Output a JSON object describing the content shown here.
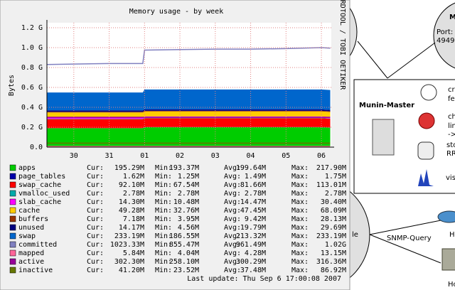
{
  "chart_data": {
    "type": "area",
    "title": "Memory usage - by week",
    "y_label": "Bytes",
    "side_text": "RRDTOOL / TOBI OETIKER",
    "footer": "Last update:  Thu Sep  6 17:00:08 2007",
    "ylim": [
      0,
      1.25
    ],
    "yticks": [
      {
        "value": 0,
        "label": "0.0"
      },
      {
        "value": 0.2,
        "label": "0.2 G"
      },
      {
        "value": 0.4,
        "label": "0.4 G"
      },
      {
        "value": 0.6,
        "label": "0.6 G"
      },
      {
        "value": 0.8,
        "label": "0.8 G"
      },
      {
        "value": 1.0,
        "label": "1.0 G"
      },
      {
        "value": 1.2,
        "label": "1.2 G"
      }
    ],
    "xlim": [
      -0.76,
      7.28
    ],
    "xticks": [
      {
        "value": 0,
        "label": "30"
      },
      {
        "value": 1,
        "label": "31"
      },
      {
        "value": 2,
        "label": "01"
      },
      {
        "value": 3,
        "label": "02"
      },
      {
        "value": 4,
        "label": "03"
      },
      {
        "value": 5,
        "label": "04"
      },
      {
        "value": 6,
        "label": "05"
      },
      {
        "value": 7,
        "label": "06"
      }
    ],
    "grid": true,
    "x": [
      -0.75,
      0,
      1,
      1.95,
      2,
      3,
      4,
      5,
      6,
      7,
      7.25
    ],
    "stat_labels": [
      "Cur:",
      "Min:",
      "Avg:",
      "Max:"
    ],
    "series": [
      {
        "name": "apps",
        "color": "#00cc00",
        "style": "area",
        "values": [
          0.19,
          0.19,
          0.19,
          0.19,
          0.2,
          0.2,
          0.2,
          0.2,
          0.2,
          0.2,
          0.195
        ],
        "stats": [
          "195.29M",
          "193.37M",
          "199.64M",
          "217.90M"
        ]
      },
      {
        "name": "page_tables",
        "color": "#0000aa",
        "style": "area",
        "values": [
          0.0015,
          0.0015,
          0.0015,
          0.0015,
          0.0015,
          0.0015,
          0.0015,
          0.0015,
          0.0015,
          0.0015,
          0.0015
        ],
        "stats": [
          "1.62M",
          "1.25M",
          "1.49M",
          "1.75M"
        ]
      },
      {
        "name": "swap_cache",
        "color": "#ff0000",
        "style": "area",
        "values": [
          0.09,
          0.09,
          0.09,
          0.09,
          0.09,
          0.09,
          0.09,
          0.09,
          0.09,
          0.09,
          0.09
        ],
        "stats": [
          "92.10M",
          "67.54M",
          "81.66M",
          "113.01M"
        ]
      },
      {
        "name": "vmalloc_used",
        "color": "#00aaaa",
        "style": "area",
        "values": [
          0.003,
          0.003,
          0.003,
          0.003,
          0.003,
          0.003,
          0.003,
          0.003,
          0.003,
          0.003,
          0.003
        ],
        "stats": [
          "2.78M",
          "2.78M",
          "2.78M",
          "2.78M"
        ]
      },
      {
        "name": "slab_cache",
        "color": "#ff00ff",
        "style": "area",
        "values": [
          0.014,
          0.014,
          0.014,
          0.014,
          0.014,
          0.014,
          0.014,
          0.014,
          0.014,
          0.014,
          0.014
        ],
        "stats": [
          "14.30M",
          "10.48M",
          "14.47M",
          "30.40M"
        ]
      },
      {
        "name": "cache",
        "color": "#ffcc00",
        "style": "area",
        "values": [
          0.05,
          0.05,
          0.05,
          0.05,
          0.05,
          0.05,
          0.05,
          0.05,
          0.05,
          0.05,
          0.05
        ],
        "stats": [
          "49.28M",
          "32.76M",
          "47.45M",
          "68.09M"
        ]
      },
      {
        "name": "buffers",
        "color": "#993300",
        "style": "area",
        "values": [
          0.007,
          0.007,
          0.007,
          0.007,
          0.007,
          0.007,
          0.007,
          0.007,
          0.007,
          0.007,
          0.007
        ],
        "stats": [
          "7.18M",
          "3.95M",
          "9.42M",
          "28.13M"
        ]
      },
      {
        "name": "unused",
        "color": "#000080",
        "style": "area",
        "values": [
          0.014,
          0.014,
          0.014,
          0.014,
          0.014,
          0.014,
          0.014,
          0.014,
          0.014,
          0.014,
          0.014
        ],
        "stats": [
          "14.17M",
          "4.56M",
          "19.79M",
          "29.69M"
        ]
      },
      {
        "name": "swap",
        "color": "#0066cc",
        "style": "area",
        "values": [
          0.18,
          0.18,
          0.18,
          0.18,
          0.2,
          0.2,
          0.2,
          0.2,
          0.2,
          0.2,
          0.2
        ],
        "stats": [
          "233.19M",
          "186.55M",
          "213.32M",
          "233.19M"
        ]
      },
      {
        "name": "committed",
        "color": "#8080c0",
        "style": "line",
        "values": [
          0.83,
          0.835,
          0.84,
          0.84,
          0.975,
          0.98,
          0.985,
          0.985,
          0.99,
          1.0,
          0.995
        ],
        "stats": [
          "1023.33M",
          "855.47M",
          "961.49M",
          "1.02G"
        ]
      },
      {
        "name": "mapped",
        "color": "#ff6699",
        "style": "line",
        "values": [
          0.006,
          0.006,
          0.006,
          0.006,
          0.006,
          0.006,
          0.006,
          0.006,
          0.006,
          0.006,
          0.006
        ],
        "stats": [
          "5.84M",
          "4.04M",
          "4.28M",
          "13.15M"
        ]
      },
      {
        "name": "active",
        "color": "#990099",
        "style": "line",
        "values": [
          0.3,
          0.3,
          0.3,
          0.3,
          0.3,
          0.3,
          0.3,
          0.3,
          0.3,
          0.3,
          0.3
        ],
        "stats": [
          "302.30M",
          "258.10M",
          "300.29M",
          "316.36M"
        ]
      },
      {
        "name": "inactive",
        "color": "#667700",
        "style": "line",
        "values": [
          0.04,
          0.04,
          0.04,
          0.04,
          0.04,
          0.04,
          0.04,
          0.04,
          0.04,
          0.04,
          0.04
        ],
        "stats": [
          "41.20M",
          "23.52M",
          "37.48M",
          "86.92M"
        ]
      }
    ]
  },
  "diagram": {
    "master": "Munin-Master",
    "node_right": [
      "M",
      "Port:",
      "4949"
    ],
    "left_node": "le",
    "features": [
      [
        "cr",
        "fe"
      ],
      [
        "ch",
        "lin",
        "->"
      ],
      [
        "sto",
        "RR"
      ],
      [
        "vis"
      ]
    ],
    "edge_label": "SNMP-Query",
    "hosts": [
      "H",
      "Ho"
    ]
  }
}
